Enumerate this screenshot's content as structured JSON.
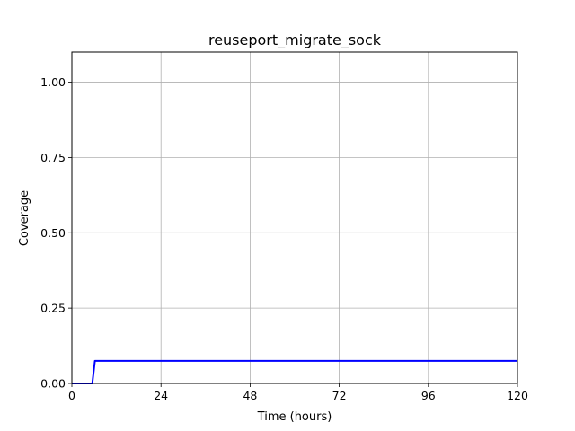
{
  "chart_data": {
    "type": "line",
    "title": "reuseport_migrate_sock",
    "xlabel": "Time (hours)",
    "ylabel": "Coverage",
    "xlim": [
      0,
      120
    ],
    "ylim": [
      0,
      1.1
    ],
    "xticks": [
      0,
      24,
      48,
      72,
      96,
      120
    ],
    "xtick_labels": [
      "0",
      "24",
      "48",
      "72",
      "96",
      "120"
    ],
    "yticks": [
      0,
      0.25,
      0.5,
      0.75,
      1.0
    ],
    "ytick_labels": [
      "0.00",
      "0.25",
      "0.50",
      "0.75",
      "1.00"
    ],
    "grid": true,
    "series": [
      {
        "color": "#0000ff",
        "x": [
          0,
          5.5,
          6.2,
          120
        ],
        "y": [
          0,
          0,
          0.075,
          0.075
        ]
      }
    ]
  }
}
